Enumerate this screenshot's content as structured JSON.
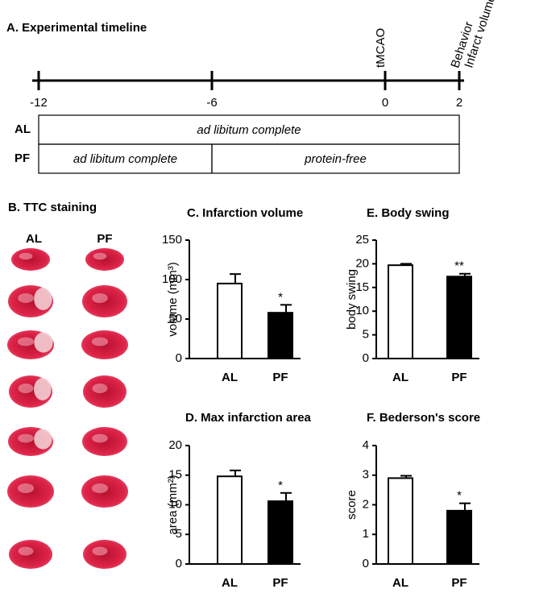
{
  "timeline": {
    "title": "A. Experimental timeline",
    "ticks": [
      "-12",
      "-6",
      "0",
      "2"
    ],
    "events": [
      {
        "labels": [
          "tMCAO"
        ],
        "at": "0"
      },
      {
        "labels": [
          "Behavior",
          "Infarct volume"
        ],
        "at": "2"
      }
    ],
    "rows": [
      {
        "name": "AL",
        "segments": [
          {
            "text": "ad libitum complete",
            "from": "-12",
            "to": "2"
          }
        ]
      },
      {
        "name": "PF",
        "segments": [
          {
            "text": "ad libitum complete",
            "from": "-12",
            "to": "-6"
          },
          {
            "text": "protein-free",
            "from": "-6",
            "to": "2"
          }
        ]
      }
    ]
  },
  "ttc": {
    "title": "B. TTC staining",
    "columns": [
      "AL",
      "PF"
    ]
  },
  "chart_data": [
    {
      "type": "bar",
      "title": "C. Infarction volume",
      "y_label": "volume (mm³)",
      "categories": [
        "AL",
        "PF"
      ],
      "values": [
        95,
        58
      ],
      "errors": [
        12,
        10
      ],
      "colors": [
        "#ffffff",
        "#000000"
      ],
      "ylim": [
        0,
        150
      ],
      "yticks": [
        0,
        50,
        100,
        150
      ],
      "annotations": [
        {
          "text": "*",
          "x": "PF"
        }
      ]
    },
    {
      "type": "bar",
      "title": "E. Body swing",
      "y_label": "body swing",
      "categories": [
        "AL",
        "PF"
      ],
      "values": [
        19.7,
        17.3
      ],
      "errors": [
        0.3,
        0.6
      ],
      "colors": [
        "#ffffff",
        "#000000"
      ],
      "ylim": [
        0,
        25
      ],
      "yticks": [
        0,
        5,
        10,
        15,
        20,
        25
      ],
      "annotations": [
        {
          "text": "**",
          "x": "PF"
        }
      ]
    },
    {
      "type": "bar",
      "title": "D. Max infarction area",
      "y_label": "area (mm²)",
      "categories": [
        "AL",
        "PF"
      ],
      "values": [
        14.8,
        10.6
      ],
      "errors": [
        1,
        1.4
      ],
      "colors": [
        "#ffffff",
        "#000000"
      ],
      "ylim": [
        0,
        20
      ],
      "yticks": [
        0,
        5,
        10,
        15,
        20
      ],
      "annotations": [
        {
          "text": "*",
          "x": "PF"
        }
      ]
    },
    {
      "type": "bar",
      "title": "F. Bederson's score",
      "y_label": "score",
      "categories": [
        "AL",
        "PF"
      ],
      "values": [
        2.9,
        1.8
      ],
      "errors": [
        0.08,
        0.25
      ],
      "colors": [
        "#ffffff",
        "#000000"
      ],
      "ylim": [
        0,
        4
      ],
      "yticks": [
        0,
        1,
        2,
        3,
        4
      ],
      "annotations": [
        {
          "text": "*",
          "x": "PF"
        }
      ]
    }
  ]
}
